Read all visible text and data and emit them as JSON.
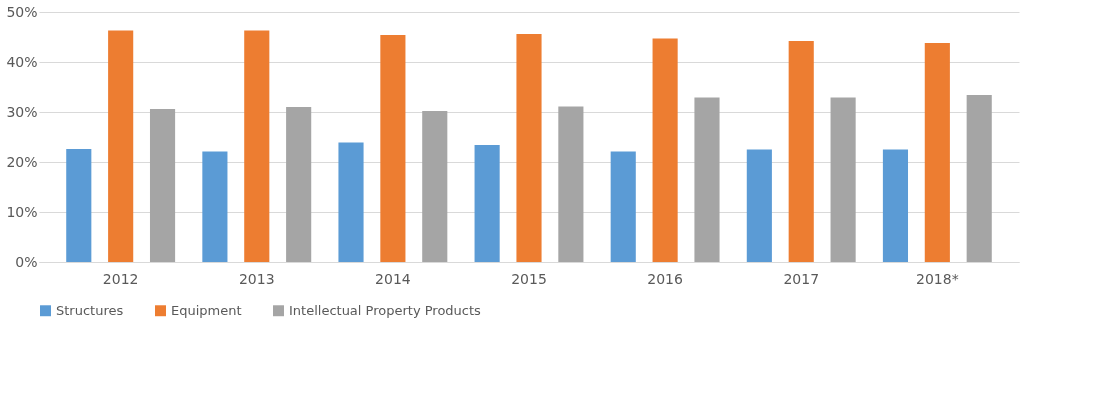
{
  "chart_data": {
    "type": "bar",
    "categories": [
      "2012",
      "2013",
      "2014",
      "2015",
      "2016",
      "2017",
      "2018*"
    ],
    "series": [
      {
        "name": "Structures",
        "color": "#5b9bd5",
        "values": [
          22.6,
          22.1,
          23.9,
          23.4,
          22.1,
          22.5,
          22.5
        ]
      },
      {
        "name": "Equipment",
        "color": "#ed7d31",
        "values": [
          46.3,
          46.3,
          45.4,
          45.6,
          44.7,
          44.2,
          43.8
        ]
      },
      {
        "name": "Intellectual Property Products",
        "color": "#a5a5a5",
        "values": [
          30.6,
          31.0,
          30.2,
          31.1,
          32.9,
          32.9,
          33.4
        ]
      }
    ],
    "ylim": [
      0,
      50
    ],
    "yticks": [
      {
        "value": 0,
        "label": "0%"
      },
      {
        "value": 10,
        "label": "10%"
      },
      {
        "value": 20,
        "label": "20%"
      },
      {
        "value": 30,
        "label": "30%"
      },
      {
        "value": 40,
        "label": "40%"
      },
      {
        "value": 50,
        "label": "50%"
      }
    ],
    "grid": "y",
    "legend": "bottom"
  }
}
